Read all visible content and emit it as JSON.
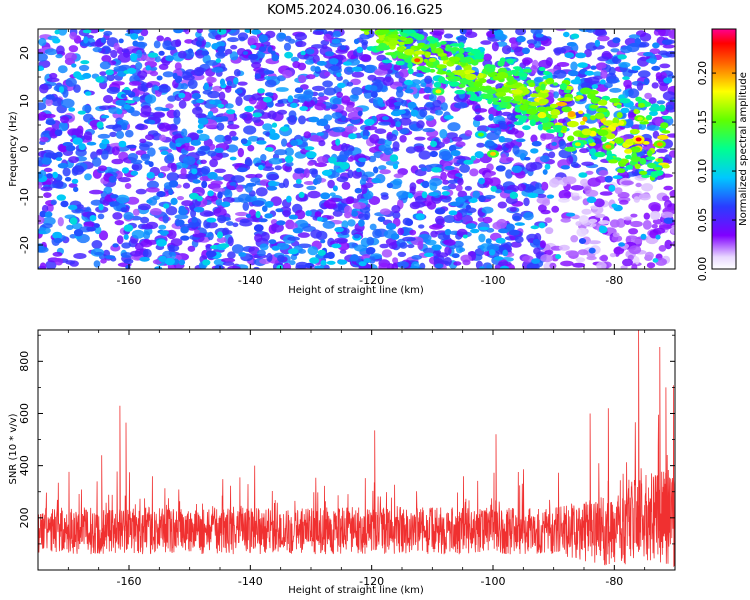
{
  "figure": {
    "title": "KOM5.2024.030.06.16.G25"
  },
  "chart_data": [
    {
      "type": "heatmap",
      "xlabel": "Height of straight line (km)",
      "ylabel": "Frequency (Hz)",
      "xlim": [
        -175,
        -70
      ],
      "ylim": [
        -25,
        25
      ],
      "x_ticks": [
        "-160",
        "-140",
        "-120",
        "-100",
        "-80"
      ],
      "x_tick_values": [
        -160,
        -140,
        -120,
        -100,
        -80
      ],
      "y_ticks": [
        "20",
        "10",
        "0",
        "-10",
        "-20"
      ],
      "y_tick_values": [
        20,
        10,
        0,
        -10,
        -20
      ],
      "colorbar": {
        "label": "Normalized spectral amplitude",
        "range": [
          0,
          0.245
        ],
        "ticks": [
          "0.00",
          "0.05",
          "0.10",
          "0.15",
          "0.20"
        ],
        "tick_values": [
          0,
          0.05,
          0.1,
          0.15,
          0.2
        ],
        "colormap": "white-purple-blue-cyan-green-yellow-red-magenta"
      },
      "features": [
        {
          "description": "diagonal band of high amplitude",
          "x_start": -120,
          "y_start": 24,
          "x_end": -72,
          "y_end": 0
        },
        {
          "description": "strongest cluster",
          "x": -76,
          "y": 2,
          "amplitude": 0.23
        }
      ]
    },
    {
      "type": "line",
      "xlabel": "Height of straight line (km)",
      "ylabel": "SNR (10 * v/v)",
      "xlim": [
        -175,
        -70
      ],
      "ylim": [
        0,
        920
      ],
      "x_ticks": [
        "-160",
        "-140",
        "-120",
        "-100",
        "-80"
      ],
      "x_tick_values": [
        -160,
        -140,
        -120,
        -100,
        -80
      ],
      "y_ticks": [
        "800",
        "600",
        "400",
        "200"
      ],
      "y_tick_values": [
        800,
        600,
        400,
        200
      ],
      "line_color": "#f03030",
      "baseline_mean": 150,
      "peaks": [
        {
          "x": -161.5,
          "y": 630
        },
        {
          "x": -160.5,
          "y": 565
        },
        {
          "x": -119.5,
          "y": 535
        },
        {
          "x": -99.5,
          "y": 520
        },
        {
          "x": -84,
          "y": 600
        },
        {
          "x": -81,
          "y": 620
        },
        {
          "x": -76,
          "y": 920
        },
        {
          "x": -72.5,
          "y": 855
        },
        {
          "x": -71.5,
          "y": 700
        },
        {
          "x": -164.5,
          "y": 440
        }
      ]
    }
  ]
}
